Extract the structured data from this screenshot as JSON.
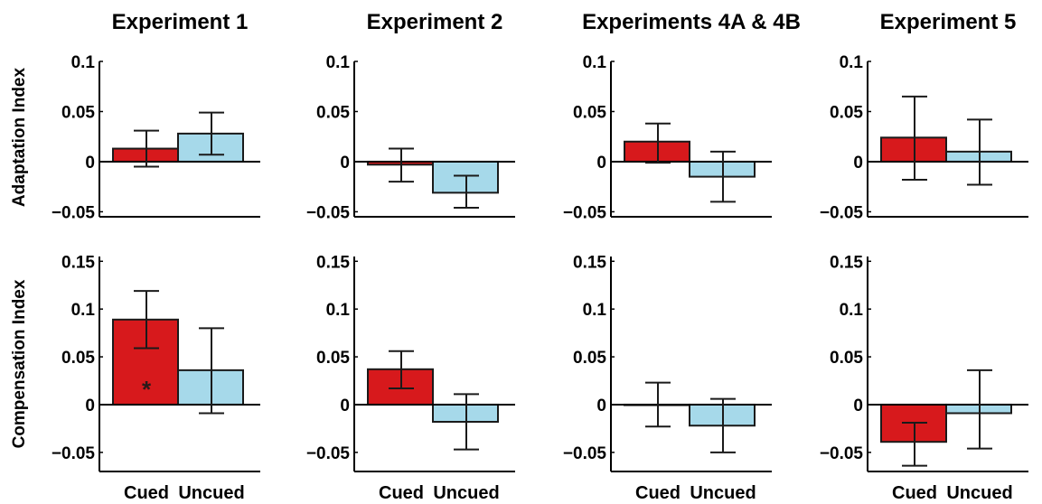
{
  "figure": {
    "row_labels": [
      "Adaptation Index",
      "Compensation Index"
    ],
    "category_labels": [
      "Cued",
      "Uncued"
    ]
  },
  "colors": {
    "cued": "#d7191c",
    "uncued": "#a6d9ea",
    "outline": "#1a1a1a"
  },
  "chart_data": [
    {
      "type": "bar",
      "title": "Experiment 1",
      "ylabel": "Adaptation Index",
      "categories": [
        "Cued",
        "Uncued"
      ],
      "values": [
        0.013,
        0.028
      ],
      "error_low": [
        -0.005,
        0.007
      ],
      "error_high": [
        0.031,
        0.049
      ],
      "ylim": [
        -0.055,
        0.1
      ],
      "yticks": [
        0.1,
        0.05,
        0,
        -0.05
      ],
      "ytick_labels": [
        "0.1",
        "0.05",
        "0",
        "−0.05"
      ],
      "annotations": []
    },
    {
      "type": "bar",
      "title": "Experiment 2",
      "ylabel": "",
      "categories": [
        "Cued",
        "Uncued"
      ],
      "values": [
        -0.003,
        -0.031
      ],
      "error_low": [
        -0.02,
        -0.046
      ],
      "error_high": [
        0.013,
        -0.014
      ],
      "ylim": [
        -0.055,
        0.1
      ],
      "yticks": [
        0.1,
        0.05,
        0,
        -0.05
      ],
      "ytick_labels": [
        "0.1",
        "0.05",
        "0",
        "−0.05"
      ],
      "annotations": []
    },
    {
      "type": "bar",
      "title": "Experiments 4A & 4B",
      "ylabel": "",
      "categories": [
        "Cued",
        "Uncued"
      ],
      "values": [
        0.02,
        -0.015
      ],
      "error_low": [
        -0.001,
        -0.04
      ],
      "error_high": [
        0.038,
        0.01
      ],
      "ylim": [
        -0.055,
        0.1
      ],
      "yticks": [
        0.1,
        0.05,
        0,
        -0.05
      ],
      "ytick_labels": [
        "0.1",
        "0.05",
        "0",
        "−0.05"
      ],
      "annotations": []
    },
    {
      "type": "bar",
      "title": "Experiment 5",
      "ylabel": "",
      "categories": [
        "Cued",
        "Uncued"
      ],
      "values": [
        0.024,
        0.01
      ],
      "error_low": [
        -0.018,
        -0.023
      ],
      "error_high": [
        0.065,
        0.042
      ],
      "ylim": [
        -0.055,
        0.1
      ],
      "yticks": [
        0.1,
        0.05,
        0,
        -0.05
      ],
      "ytick_labels": [
        "0.1",
        "0.05",
        "0",
        "−0.05"
      ],
      "annotations": []
    },
    {
      "type": "bar",
      "title": "",
      "ylabel": "Compensation Index",
      "categories": [
        "Cued",
        "Uncued"
      ],
      "values": [
        0.089,
        0.036
      ],
      "error_low": [
        0.059,
        -0.009
      ],
      "error_high": [
        0.119,
        0.08
      ],
      "ylim": [
        -0.07,
        0.155
      ],
      "yticks": [
        0.15,
        0.1,
        0.05,
        0,
        -0.05
      ],
      "ytick_labels": [
        "0.15",
        "0.1",
        "0.05",
        "0",
        "−0.05"
      ],
      "annotations": [
        {
          "text": "*",
          "bar": 0
        }
      ]
    },
    {
      "type": "bar",
      "title": "",
      "ylabel": "",
      "categories": [
        "Cued",
        "Uncued"
      ],
      "values": [
        0.037,
        -0.018
      ],
      "error_low": [
        0.017,
        -0.047
      ],
      "error_high": [
        0.056,
        0.011
      ],
      "ylim": [
        -0.07,
        0.155
      ],
      "yticks": [
        0.15,
        0.1,
        0.05,
        0,
        -0.05
      ],
      "ytick_labels": [
        "0.15",
        "0.1",
        "0.05",
        "0",
        "−0.05"
      ],
      "annotations": []
    },
    {
      "type": "bar",
      "title": "",
      "ylabel": "",
      "categories": [
        "Cued",
        "Uncued"
      ],
      "values": [
        0.0,
        -0.022
      ],
      "error_low": [
        -0.023,
        -0.05
      ],
      "error_high": [
        0.023,
        0.006
      ],
      "ylim": [
        -0.07,
        0.155
      ],
      "yticks": [
        0.15,
        0.1,
        0.05,
        0,
        -0.05
      ],
      "ytick_labels": [
        "0.15",
        "0.1",
        "0.05",
        "0",
        "−0.05"
      ],
      "annotations": []
    },
    {
      "type": "bar",
      "title": "",
      "ylabel": "",
      "categories": [
        "Cued",
        "Uncued"
      ],
      "values": [
        -0.039,
        -0.009
      ],
      "error_low": [
        -0.064,
        -0.046
      ],
      "error_high": [
        -0.019,
        0.036
      ],
      "ylim": [
        -0.07,
        0.155
      ],
      "yticks": [
        0.15,
        0.1,
        0.05,
        0,
        -0.05
      ],
      "ytick_labels": [
        "0.15",
        "0.1",
        "0.05",
        "0",
        "−0.05"
      ],
      "annotations": []
    }
  ]
}
